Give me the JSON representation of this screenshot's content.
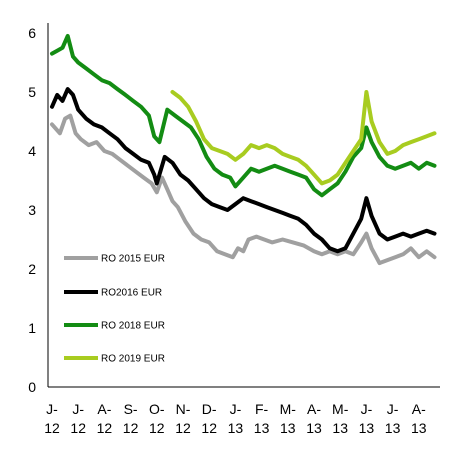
{
  "chart_data": {
    "type": "line",
    "title": "",
    "xlabel": "",
    "ylabel": "",
    "ylim": [
      0,
      6
    ],
    "y_ticks": [
      "0",
      "1",
      "2",
      "3",
      "4",
      "5",
      "6"
    ],
    "x_ticks": [
      {
        "top": "J-",
        "bottom": "12"
      },
      {
        "top": "J-",
        "bottom": "12"
      },
      {
        "top": "A-",
        "bottom": "12"
      },
      {
        "top": "S-",
        "bottom": "12"
      },
      {
        "top": "O-",
        "bottom": "12"
      },
      {
        "top": "N-",
        "bottom": "12"
      },
      {
        "top": "D-",
        "bottom": "12"
      },
      {
        "top": "J-",
        "bottom": "13"
      },
      {
        "top": "F-",
        "bottom": "13"
      },
      {
        "top": "M-",
        "bottom": "13"
      },
      {
        "top": "A-",
        "bottom": "13"
      },
      {
        "top": "M-",
        "bottom": "13"
      },
      {
        "top": "J-",
        "bottom": "13"
      },
      {
        "top": "J-",
        "bottom": "13"
      },
      {
        "top": "A-",
        "bottom": "13"
      }
    ],
    "grid": false,
    "legend": "left",
    "series": [
      {
        "name": "RO 2015 EUR",
        "color": "#a0a0a0",
        "points": [
          [
            0,
            4.45
          ],
          [
            0.3,
            4.3
          ],
          [
            0.5,
            4.55
          ],
          [
            0.7,
            4.6
          ],
          [
            0.9,
            4.3
          ],
          [
            1.1,
            4.2
          ],
          [
            1.4,
            4.1
          ],
          [
            1.7,
            4.15
          ],
          [
            2.0,
            4.0
          ],
          [
            2.3,
            3.95
          ],
          [
            2.6,
            3.85
          ],
          [
            2.9,
            3.75
          ],
          [
            3.2,
            3.65
          ],
          [
            3.5,
            3.55
          ],
          [
            3.8,
            3.45
          ],
          [
            4.0,
            3.3
          ],
          [
            4.2,
            3.55
          ],
          [
            4.4,
            3.35
          ],
          [
            4.6,
            3.15
          ],
          [
            4.8,
            3.05
          ],
          [
            5.1,
            2.8
          ],
          [
            5.4,
            2.6
          ],
          [
            5.7,
            2.5
          ],
          [
            6.0,
            2.45
          ],
          [
            6.3,
            2.3
          ],
          [
            6.6,
            2.25
          ],
          [
            6.9,
            2.2
          ],
          [
            7.1,
            2.35
          ],
          [
            7.3,
            2.3
          ],
          [
            7.5,
            2.5
          ],
          [
            7.8,
            2.55
          ],
          [
            8.1,
            2.5
          ],
          [
            8.4,
            2.45
          ],
          [
            8.8,
            2.5
          ],
          [
            9.2,
            2.45
          ],
          [
            9.6,
            2.4
          ],
          [
            10.0,
            2.3
          ],
          [
            10.3,
            2.25
          ],
          [
            10.6,
            2.3
          ],
          [
            10.9,
            2.25
          ],
          [
            11.2,
            2.3
          ],
          [
            11.5,
            2.25
          ],
          [
            11.8,
            2.45
          ],
          [
            12.0,
            2.6
          ],
          [
            12.2,
            2.35
          ],
          [
            12.5,
            2.1
          ],
          [
            12.8,
            2.15
          ],
          [
            13.1,
            2.2
          ],
          [
            13.4,
            2.25
          ],
          [
            13.7,
            2.35
          ],
          [
            14.0,
            2.2
          ],
          [
            14.3,
            2.3
          ],
          [
            14.6,
            2.2
          ]
        ]
      },
      {
        "name": "RO2016 EUR",
        "color": "#000000",
        "points": [
          [
            0,
            4.75
          ],
          [
            0.2,
            4.95
          ],
          [
            0.4,
            4.85
          ],
          [
            0.6,
            5.05
          ],
          [
            0.8,
            4.95
          ],
          [
            1.0,
            4.7
          ],
          [
            1.3,
            4.55
          ],
          [
            1.6,
            4.45
          ],
          [
            1.9,
            4.4
          ],
          [
            2.2,
            4.3
          ],
          [
            2.5,
            4.2
          ],
          [
            2.8,
            4.05
          ],
          [
            3.1,
            3.95
          ],
          [
            3.4,
            3.85
          ],
          [
            3.7,
            3.8
          ],
          [
            3.9,
            3.6
          ],
          [
            4.0,
            3.45
          ],
          [
            4.3,
            3.9
          ],
          [
            4.6,
            3.8
          ],
          [
            4.9,
            3.6
          ],
          [
            5.2,
            3.5
          ],
          [
            5.5,
            3.35
          ],
          [
            5.8,
            3.2
          ],
          [
            6.1,
            3.1
          ],
          [
            6.4,
            3.05
          ],
          [
            6.7,
            3.0
          ],
          [
            7.0,
            3.1
          ],
          [
            7.3,
            3.2
          ],
          [
            7.6,
            3.15
          ],
          [
            7.9,
            3.1
          ],
          [
            8.2,
            3.05
          ],
          [
            8.5,
            3.0
          ],
          [
            8.8,
            2.95
          ],
          [
            9.1,
            2.9
          ],
          [
            9.4,
            2.85
          ],
          [
            9.7,
            2.75
          ],
          [
            10.0,
            2.6
          ],
          [
            10.3,
            2.5
          ],
          [
            10.6,
            2.35
          ],
          [
            10.9,
            2.3
          ],
          [
            11.2,
            2.35
          ],
          [
            11.5,
            2.6
          ],
          [
            11.8,
            2.85
          ],
          [
            12.0,
            3.2
          ],
          [
            12.2,
            2.9
          ],
          [
            12.5,
            2.6
          ],
          [
            12.8,
            2.5
          ],
          [
            13.1,
            2.55
          ],
          [
            13.4,
            2.6
          ],
          [
            13.7,
            2.55
          ],
          [
            14.0,
            2.6
          ],
          [
            14.3,
            2.65
          ],
          [
            14.6,
            2.6
          ]
        ]
      },
      {
        "name": "RO 2018 EUR",
        "color": "#138c13",
        "points": [
          [
            0,
            5.65
          ],
          [
            0.2,
            5.7
          ],
          [
            0.4,
            5.75
          ],
          [
            0.6,
            5.95
          ],
          [
            0.8,
            5.6
          ],
          [
            1.0,
            5.5
          ],
          [
            1.3,
            5.4
          ],
          [
            1.6,
            5.3
          ],
          [
            1.9,
            5.2
          ],
          [
            2.2,
            5.15
          ],
          [
            2.5,
            5.05
          ],
          [
            2.8,
            4.95
          ],
          [
            3.1,
            4.85
          ],
          [
            3.4,
            4.75
          ],
          [
            3.7,
            4.6
          ],
          [
            3.9,
            4.25
          ],
          [
            4.1,
            4.15
          ],
          [
            4.4,
            4.7
          ],
          [
            4.7,
            4.6
          ],
          [
            5.0,
            4.5
          ],
          [
            5.3,
            4.4
          ],
          [
            5.6,
            4.2
          ],
          [
            5.9,
            3.9
          ],
          [
            6.2,
            3.7
          ],
          [
            6.5,
            3.6
          ],
          [
            6.8,
            3.55
          ],
          [
            7.0,
            3.4
          ],
          [
            7.3,
            3.55
          ],
          [
            7.6,
            3.7
          ],
          [
            7.9,
            3.65
          ],
          [
            8.2,
            3.7
          ],
          [
            8.5,
            3.75
          ],
          [
            8.8,
            3.7
          ],
          [
            9.1,
            3.65
          ],
          [
            9.4,
            3.6
          ],
          [
            9.7,
            3.55
          ],
          [
            10.0,
            3.35
          ],
          [
            10.3,
            3.25
          ],
          [
            10.6,
            3.35
          ],
          [
            10.9,
            3.45
          ],
          [
            11.2,
            3.65
          ],
          [
            11.5,
            3.9
          ],
          [
            11.8,
            4.05
          ],
          [
            12.0,
            4.4
          ],
          [
            12.2,
            4.15
          ],
          [
            12.5,
            3.9
          ],
          [
            12.8,
            3.75
          ],
          [
            13.1,
            3.7
          ],
          [
            13.4,
            3.75
          ],
          [
            13.7,
            3.8
          ],
          [
            14.0,
            3.7
          ],
          [
            14.3,
            3.8
          ],
          [
            14.6,
            3.75
          ]
        ]
      },
      {
        "name": "RO 2019 EUR",
        "color": "#a8cc20",
        "points": [
          [
            4.6,
            5.0
          ],
          [
            4.9,
            4.9
          ],
          [
            5.2,
            4.75
          ],
          [
            5.5,
            4.5
          ],
          [
            5.8,
            4.2
          ],
          [
            6.1,
            4.05
          ],
          [
            6.4,
            4.0
          ],
          [
            6.7,
            3.95
          ],
          [
            7.0,
            3.85
          ],
          [
            7.3,
            3.95
          ],
          [
            7.6,
            4.1
          ],
          [
            7.9,
            4.05
          ],
          [
            8.2,
            4.1
          ],
          [
            8.5,
            4.05
          ],
          [
            8.8,
            3.95
          ],
          [
            9.1,
            3.9
          ],
          [
            9.4,
            3.85
          ],
          [
            9.7,
            3.75
          ],
          [
            10.0,
            3.6
          ],
          [
            10.3,
            3.45
          ],
          [
            10.6,
            3.5
          ],
          [
            10.9,
            3.6
          ],
          [
            11.2,
            3.8
          ],
          [
            11.5,
            4.0
          ],
          [
            11.8,
            4.2
          ],
          [
            12.0,
            5.0
          ],
          [
            12.2,
            4.5
          ],
          [
            12.5,
            4.15
          ],
          [
            12.8,
            3.95
          ],
          [
            13.1,
            4.0
          ],
          [
            13.4,
            4.1
          ],
          [
            13.7,
            4.15
          ],
          [
            14.0,
            4.2
          ],
          [
            14.3,
            4.25
          ],
          [
            14.6,
            4.3
          ]
        ]
      }
    ]
  }
}
